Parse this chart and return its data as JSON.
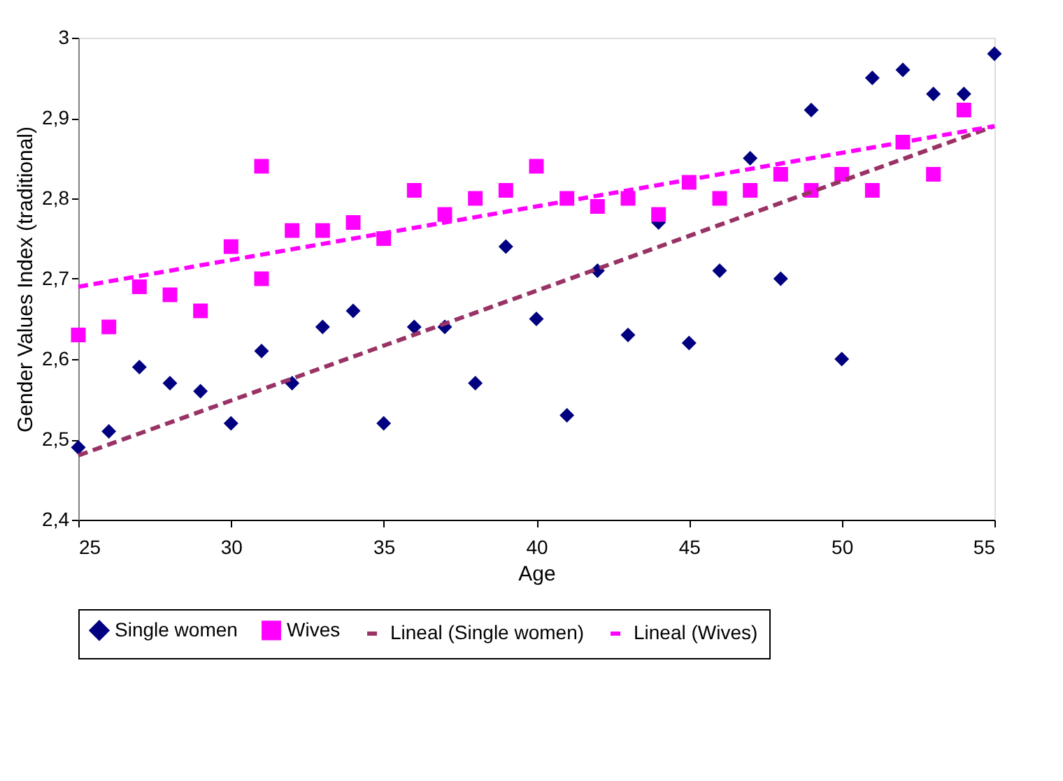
{
  "chart_data": {
    "type": "scatter",
    "xlabel": "Age",
    "ylabel": "Gender Values Index (traditional)",
    "xlim": [
      25,
      55
    ],
    "xticks": [
      25,
      30,
      35,
      40,
      45,
      50,
      55
    ],
    "ylim": [
      2.4,
      3.0
    ],
    "yticks": [
      {
        "value": 2.4,
        "label": "2,4"
      },
      {
        "value": 2.5,
        "label": "2,5"
      },
      {
        "value": 2.6,
        "label": "2,6"
      },
      {
        "value": 2.7,
        "label": "2,7"
      },
      {
        "value": 2.8,
        "label": "2,8"
      },
      {
        "value": 2.9,
        "label": "2,9"
      },
      {
        "value": 3.0,
        "label": "3"
      }
    ],
    "legend": "bottom",
    "series": [
      {
        "name": "Single women",
        "marker": "diamond",
        "color": "#000080",
        "x": [
          25,
          26,
          27,
          28,
          29,
          30,
          31,
          32,
          33,
          34,
          35,
          36,
          37,
          38,
          39,
          40,
          41,
          42,
          43,
          44,
          45,
          46,
          47,
          48,
          49,
          50,
          51,
          52,
          53,
          54,
          55
        ],
        "values": [
          2.49,
          2.51,
          2.59,
          2.57,
          2.56,
          2.52,
          2.61,
          2.57,
          2.64,
          2.66,
          2.52,
          2.64,
          2.64,
          2.57,
          2.74,
          2.65,
          2.53,
          2.71,
          2.63,
          2.77,
          2.62,
          2.71,
          2.85,
          2.7,
          2.91,
          2.6,
          2.95,
          2.96,
          2.93,
          2.93,
          2.98
        ]
      },
      {
        "name": "Wives",
        "marker": "square",
        "color": "#ff00ff",
        "x": [
          25,
          26,
          27,
          28,
          29,
          30,
          31,
          31,
          32,
          33,
          34,
          35,
          36,
          37,
          38,
          39,
          40,
          41,
          42,
          43,
          44,
          45,
          46,
          47,
          48,
          49,
          50,
          51,
          52,
          53,
          54
        ],
        "values": [
          2.63,
          2.64,
          2.69,
          2.68,
          2.66,
          2.74,
          2.84,
          2.7,
          2.76,
          2.76,
          2.77,
          2.75,
          2.81,
          2.78,
          2.8,
          2.81,
          2.84,
          2.8,
          2.79,
          2.8,
          2.78,
          2.82,
          2.8,
          2.81,
          2.83,
          2.81,
          2.83,
          2.81,
          2.87,
          2.83,
          2.91
        ]
      },
      {
        "name": "Lineal (Single women)",
        "type": "line",
        "line_style": "dashed",
        "color": "#993366",
        "x": [
          25,
          55
        ],
        "values": [
          2.48,
          2.89
        ]
      },
      {
        "name": "Lineal (Wives)",
        "type": "line",
        "line_style": "dashed",
        "color": "#ff00ff",
        "x": [
          25,
          55
        ],
        "values": [
          2.69,
          2.89
        ]
      }
    ]
  }
}
